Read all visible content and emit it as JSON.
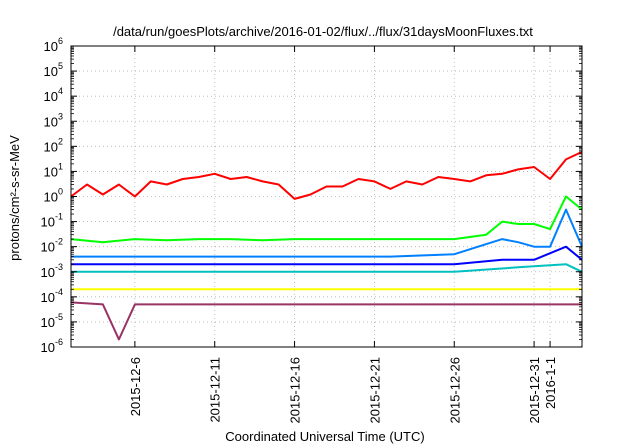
{
  "chart_data": {
    "type": "line",
    "title": "/data/run/goesPlots/archive/2016-01-02/flux/../flux/31daysMoonFluxes.txt",
    "xlabel": "Coordinated Universal Time (UTC)",
    "ylabel": "protons/cm²-s-sr-MeV",
    "y_scale": "log",
    "ylim": [
      1e-06,
      1000000.0
    ],
    "xlim": [
      "2015-12-02",
      "2016-01-03"
    ],
    "grid": true,
    "x_ticks": [
      {
        "date": "2015-12-06",
        "label": "2015-12-6"
      },
      {
        "date": "2015-12-11",
        "label": "2015-12-11"
      },
      {
        "date": "2015-12-16",
        "label": "2015-12-16"
      },
      {
        "date": "2015-12-21",
        "label": "2015-12-21"
      },
      {
        "date": "2015-12-26",
        "label": "2015-12-26"
      },
      {
        "date": "2015-12-31",
        "label": "2015-12-31"
      },
      {
        "date": "2016-01-01",
        "label": "2016-1-1"
      }
    ],
    "y_ticks": [
      {
        "value": 1e-06,
        "base": "10",
        "exp": "-6"
      },
      {
        "value": 1e-05,
        "base": "10",
        "exp": "-5"
      },
      {
        "value": 0.0001,
        "base": "10",
        "exp": "-4"
      },
      {
        "value": 0.001,
        "base": "10",
        "exp": "-3"
      },
      {
        "value": 0.01,
        "base": "10",
        "exp": "-2"
      },
      {
        "value": 0.1,
        "base": "10",
        "exp": "-1"
      },
      {
        "value": 1,
        "base": "10",
        "exp": "0"
      },
      {
        "value": 10,
        "base": "10",
        "exp": "1"
      },
      {
        "value": 100,
        "base": "10",
        "exp": "2"
      },
      {
        "value": 1000,
        "base": "10",
        "exp": "3"
      },
      {
        "value": 10000,
        "base": "10",
        "exp": "4"
      },
      {
        "value": 100000,
        "base": "10",
        "exp": "5"
      },
      {
        "value": 1000000,
        "base": "10",
        "exp": "6"
      }
    ],
    "series": [
      {
        "color": "#ff0000",
        "values": [
          [
            "2015-12-02",
            1.0
          ],
          [
            "2015-12-03",
            3.0
          ],
          [
            "2015-12-04",
            1.2
          ],
          [
            "2015-12-05",
            3.0
          ],
          [
            "2015-12-06",
            1.0
          ],
          [
            "2015-12-07",
            4.0
          ],
          [
            "2015-12-08",
            3.0
          ],
          [
            "2015-12-09",
            5.0
          ],
          [
            "2015-12-10",
            6.0
          ],
          [
            "2015-12-11",
            8.0
          ],
          [
            "2015-12-12",
            5.0
          ],
          [
            "2015-12-13",
            6.0
          ],
          [
            "2015-12-14",
            4.0
          ],
          [
            "2015-12-15",
            3.0
          ],
          [
            "2015-12-16",
            0.8
          ],
          [
            "2015-12-17",
            1.2
          ],
          [
            "2015-12-18",
            2.5
          ],
          [
            "2015-12-19",
            2.5
          ],
          [
            "2015-12-20",
            5.0
          ],
          [
            "2015-12-21",
            4.0
          ],
          [
            "2015-12-22",
            2.0
          ],
          [
            "2015-12-23",
            4.0
          ],
          [
            "2015-12-24",
            3.0
          ],
          [
            "2015-12-25",
            6.0
          ],
          [
            "2015-12-26",
            5.0
          ],
          [
            "2015-12-27",
            4.0
          ],
          [
            "2015-12-28",
            7.0
          ],
          [
            "2015-12-29",
            8.0
          ],
          [
            "2015-12-30",
            12.0
          ],
          [
            "2015-12-31",
            15.0
          ],
          [
            "2016-01-01",
            5.0
          ],
          [
            "2016-01-02",
            30.0
          ],
          [
            "2016-01-03",
            60.0
          ]
        ]
      },
      {
        "color": "#00ff00",
        "values": [
          [
            "2015-12-02",
            0.02
          ],
          [
            "2015-12-04",
            0.015
          ],
          [
            "2015-12-06",
            0.02
          ],
          [
            "2015-12-08",
            0.018
          ],
          [
            "2015-12-10",
            0.02
          ],
          [
            "2015-12-12",
            0.02
          ],
          [
            "2015-12-14",
            0.018
          ],
          [
            "2015-12-16",
            0.02
          ],
          [
            "2015-12-18",
            0.02
          ],
          [
            "2015-12-20",
            0.02
          ],
          [
            "2015-12-22",
            0.02
          ],
          [
            "2015-12-24",
            0.02
          ],
          [
            "2015-12-26",
            0.02
          ],
          [
            "2015-12-28",
            0.03
          ],
          [
            "2015-12-29",
            0.1
          ],
          [
            "2015-12-30",
            0.08
          ],
          [
            "2015-12-31",
            0.08
          ],
          [
            "2016-01-01",
            0.05
          ],
          [
            "2016-01-02",
            1.0
          ],
          [
            "2016-01-03",
            0.3
          ]
        ]
      },
      {
        "color": "#0080ff",
        "values": [
          [
            "2015-12-02",
            0.004
          ],
          [
            "2015-12-06",
            0.004
          ],
          [
            "2015-12-10",
            0.004
          ],
          [
            "2015-12-14",
            0.004
          ],
          [
            "2015-12-18",
            0.004
          ],
          [
            "2015-12-22",
            0.004
          ],
          [
            "2015-12-26",
            0.005
          ],
          [
            "2015-12-29",
            0.02
          ],
          [
            "2015-12-30",
            0.015
          ],
          [
            "2015-12-31",
            0.01
          ],
          [
            "2016-01-01",
            0.01
          ],
          [
            "2016-01-02",
            0.3
          ],
          [
            "2016-01-03",
            0.01
          ]
        ]
      },
      {
        "color": "#0000ff",
        "values": [
          [
            "2015-12-02",
            0.002
          ],
          [
            "2015-12-06",
            0.002
          ],
          [
            "2015-12-10",
            0.002
          ],
          [
            "2015-12-14",
            0.002
          ],
          [
            "2015-12-18",
            0.002
          ],
          [
            "2015-12-22",
            0.002
          ],
          [
            "2015-12-26",
            0.002
          ],
          [
            "2015-12-29",
            0.003
          ],
          [
            "2015-12-31",
            0.003
          ],
          [
            "2016-01-02",
            0.01
          ],
          [
            "2016-01-03",
            0.003
          ]
        ]
      },
      {
        "color": "#00c0c0",
        "values": [
          [
            "2015-12-02",
            0.001
          ],
          [
            "2015-12-08",
            0.001
          ],
          [
            "2015-12-14",
            0.001
          ],
          [
            "2015-12-20",
            0.001
          ],
          [
            "2015-12-26",
            0.001
          ],
          [
            "2015-12-30",
            0.0015
          ],
          [
            "2016-01-02",
            0.002
          ],
          [
            "2016-01-03",
            0.001
          ]
        ]
      },
      {
        "color": "#ffff00",
        "values": [
          [
            "2015-12-02",
            0.0002
          ],
          [
            "2015-12-07",
            0.0002
          ],
          [
            "2015-12-12",
            0.0002
          ],
          [
            "2015-12-17",
            0.0002
          ],
          [
            "2015-12-22",
            0.0002
          ],
          [
            "2015-12-27",
            0.0002
          ],
          [
            "2016-01-01",
            0.0002
          ],
          [
            "2016-01-03",
            0.0002
          ]
        ]
      },
      {
        "color": "#993366",
        "values": [
          [
            "2015-12-02",
            6e-05
          ],
          [
            "2015-12-04",
            5e-05
          ],
          [
            "2015-12-05",
            2e-06
          ],
          [
            "2015-12-06",
            5e-05
          ],
          [
            "2015-12-10",
            5e-05
          ],
          [
            "2015-12-14",
            5e-05
          ],
          [
            "2015-12-18",
            5e-05
          ],
          [
            "2015-12-22",
            5e-05
          ],
          [
            "2015-12-26",
            5e-05
          ],
          [
            "2015-12-30",
            5e-05
          ],
          [
            "2016-01-03",
            5e-05
          ]
        ]
      }
    ]
  }
}
